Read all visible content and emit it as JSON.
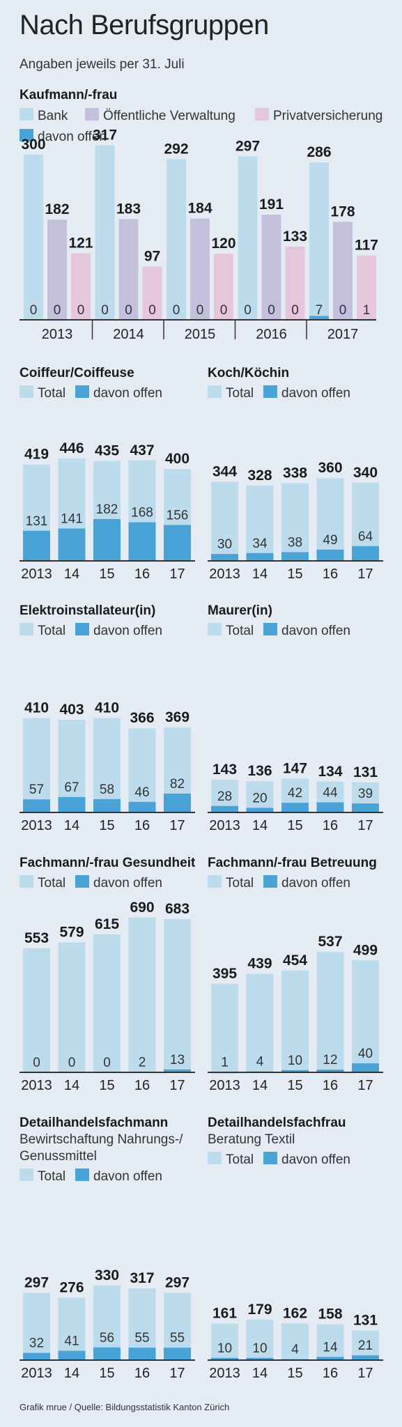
{
  "page": {
    "title": "Nach Berufsgruppen",
    "subtitle": "Angaben jeweils per 31. Juli",
    "source": "Grafik mrue / Quelle: Bildungsstatistik Kanton Zürich"
  },
  "colors": {
    "background": "#e4ebf2",
    "total": "#bcdcee",
    "open": "#4aa3d6",
    "bank": "#bcdcee",
    "verwaltung": "#c4bfdd",
    "privatversicherung": "#e6c6dc",
    "axis": "#333333"
  },
  "chart_data": [
    {
      "type": "bar",
      "title": "Kaufmann/-frau",
      "categories": [
        "2013",
        "2014",
        "2015",
        "2016",
        "2017"
      ],
      "series": [
        {
          "name": "Bank",
          "values": [
            300,
            317,
            292,
            297,
            286
          ],
          "open": [
            0,
            0,
            0,
            0,
            7
          ]
        },
        {
          "name": "Öffentliche Verwaltung",
          "values": [
            182,
            183,
            184,
            191,
            178
          ],
          "open": [
            0,
            0,
            0,
            0,
            0
          ]
        },
        {
          "name": "Privatversicherung",
          "values": [
            121,
            97,
            120,
            133,
            117
          ],
          "open": [
            0,
            0,
            0,
            0,
            1
          ]
        }
      ],
      "open_series_name": "davon offen"
    },
    {
      "type": "bar",
      "title": "Coiffeur/Coiffeuse",
      "categories": [
        "2013",
        "14",
        "15",
        "16",
        "17"
      ],
      "series": [
        {
          "name": "Total",
          "values": [
            419,
            446,
            435,
            437,
            400
          ]
        },
        {
          "name": "davon offen",
          "values": [
            131,
            141,
            182,
            168,
            156
          ]
        }
      ]
    },
    {
      "type": "bar",
      "title": "Koch/Köchin",
      "categories": [
        "2013",
        "14",
        "15",
        "16",
        "17"
      ],
      "series": [
        {
          "name": "Total",
          "values": [
            344,
            328,
            338,
            360,
            340
          ]
        },
        {
          "name": "davon offen",
          "values": [
            30,
            34,
            38,
            49,
            64
          ]
        }
      ]
    },
    {
      "type": "bar",
      "title": "Elektroinstallateur(in)",
      "categories": [
        "2013",
        "14",
        "15",
        "16",
        "17"
      ],
      "series": [
        {
          "name": "Total",
          "values": [
            410,
            403,
            410,
            366,
            369
          ]
        },
        {
          "name": "davon offen",
          "values": [
            57,
            67,
            58,
            46,
            82
          ]
        }
      ]
    },
    {
      "type": "bar",
      "title": "Maurer(in)",
      "categories": [
        "2013",
        "14",
        "15",
        "16",
        "17"
      ],
      "series": [
        {
          "name": "Total",
          "values": [
            143,
            136,
            147,
            134,
            131
          ]
        },
        {
          "name": "davon offen",
          "values": [
            28,
            20,
            42,
            44,
            39
          ]
        }
      ]
    },
    {
      "type": "bar",
      "title": "Fachmann/-frau Gesundheit",
      "categories": [
        "2013",
        "14",
        "15",
        "16",
        "17"
      ],
      "series": [
        {
          "name": "Total",
          "values": [
            553,
            579,
            615,
            690,
            683
          ]
        },
        {
          "name": "davon offen",
          "values": [
            0,
            0,
            0,
            2,
            13
          ]
        }
      ]
    },
    {
      "type": "bar",
      "title": "Fachmann/-frau Betreuung",
      "categories": [
        "2013",
        "14",
        "15",
        "16",
        "17"
      ],
      "series": [
        {
          "name": "Total",
          "values": [
            395,
            439,
            454,
            537,
            499
          ]
        },
        {
          "name": "davon offen",
          "values": [
            1,
            4,
            10,
            12,
            40
          ]
        }
      ]
    },
    {
      "type": "bar",
      "title": "Detailhandelsfachmann",
      "subtitle": [
        "Bewirtschaftung Nahrungs-/",
        "Genussmittel"
      ],
      "categories": [
        "2013",
        "14",
        "15",
        "16",
        "17"
      ],
      "series": [
        {
          "name": "Total",
          "values": [
            297,
            276,
            330,
            317,
            297
          ]
        },
        {
          "name": "davon offen",
          "values": [
            32,
            41,
            56,
            55,
            55
          ]
        }
      ]
    },
    {
      "type": "bar",
      "title": "Detailhandelsfachfrau",
      "subtitle": [
        "Beratung Textil"
      ],
      "categories": [
        "2013",
        "14",
        "15",
        "16",
        "17"
      ],
      "series": [
        {
          "name": "Total",
          "values": [
            161,
            179,
            162,
            158,
            131
          ]
        },
        {
          "name": "davon offen",
          "values": [
            10,
            10,
            4,
            14,
            21
          ]
        }
      ]
    }
  ]
}
